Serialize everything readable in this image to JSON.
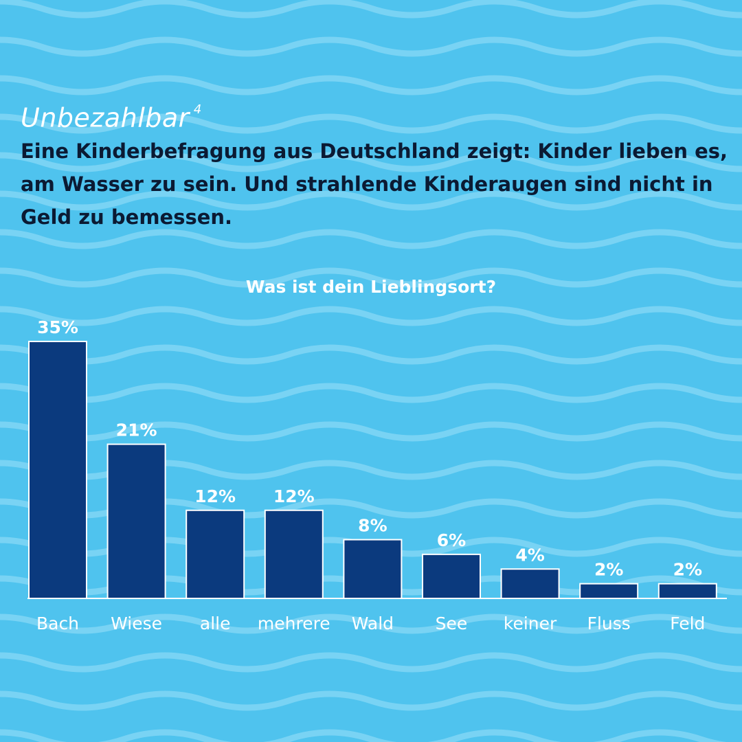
{
  "header": {
    "brand": "Unbezahlbar",
    "brand_superscript": "4",
    "subtitle": "Eine Kinderbefragung aus Deutschland zeigt: Kinder lieben es, am Wasser zu sein. Und strahlende Kinderaugen sind nicht in Geld zu bemessen."
  },
  "colors": {
    "background": "#4fc3ee",
    "wave": "#79d3f4",
    "bar": "#0b3a7e",
    "bar_outline": "#ffffff",
    "text_dark": "#0b1a33",
    "text_light": "#ffffff"
  },
  "chart_data": {
    "type": "bar",
    "title": "Was ist dein Lieblingsort?",
    "categories": [
      "Bach",
      "Wiese",
      "alle",
      "mehrere",
      "Wald",
      "See",
      "keiner",
      "Fluss",
      "Feld"
    ],
    "values": [
      35,
      21,
      12,
      12,
      8,
      6,
      4,
      2,
      2
    ],
    "value_labels": [
      "35%",
      "21%",
      "12%",
      "12%",
      "8%",
      "6%",
      "4%",
      "2%",
      "2%"
    ],
    "ylim": [
      0,
      35
    ],
    "grid": false,
    "legend": "none",
    "xlabel": "",
    "ylabel": ""
  }
}
